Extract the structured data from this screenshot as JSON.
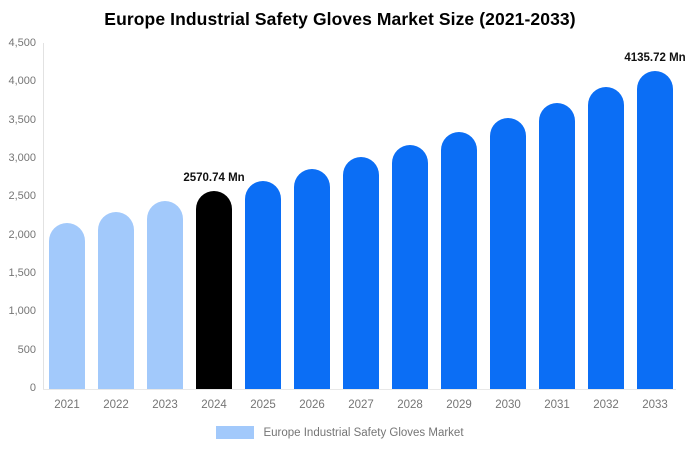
{
  "title": "Europe Industrial Safety Gloves Market Size (2021-2033)",
  "legend": {
    "label": "Europe Industrial Safety Gloves Market",
    "swatch_color": "#a2c9fb"
  },
  "colors": {
    "historical": "#a2c9fb",
    "base_year": "#000000",
    "forecast": "#0b6ef5",
    "axis_text": "#757575",
    "value_label_text": "#111111"
  },
  "chart_data": {
    "type": "bar",
    "title": "Europe Industrial Safety Gloves Market Size (2021-2033)",
    "unit": "Mn",
    "ylim": [
      0,
      4500
    ],
    "grid": "off",
    "legend_position": "bottom",
    "y_ticks": [
      {
        "value": 4500,
        "label": "4,500"
      },
      {
        "value": 4000,
        "label": "4,000"
      },
      {
        "value": 3500,
        "label": "3,500"
      },
      {
        "value": 3000,
        "label": "3,000"
      },
      {
        "value": 2500,
        "label": "2,500"
      },
      {
        "value": 2000,
        "label": "2,000"
      },
      {
        "value": 1500,
        "label": "1,500"
      },
      {
        "value": 1000,
        "label": "1,000"
      },
      {
        "value": 500,
        "label": "500"
      },
      {
        "value": 0,
        "label": "0"
      }
    ],
    "categories": [
      "2021",
      "2022",
      "2023",
      "2024",
      "2025",
      "2026",
      "2027",
      "2028",
      "2029",
      "2030",
      "2031",
      "2032",
      "2033"
    ],
    "series": [
      {
        "name": "Europe Industrial Safety Gloves Market",
        "values": [
          2150,
          2295,
          2435,
          2570.74,
          2705,
          2855,
          3010,
          3175,
          3340,
          3520,
          3715,
          3920,
          4135.72
        ]
      }
    ],
    "bars": [
      {
        "year": "2021",
        "value": 2150,
        "role": "historical"
      },
      {
        "year": "2022",
        "value": 2295,
        "role": "historical"
      },
      {
        "year": "2023",
        "value": 2435,
        "role": "historical"
      },
      {
        "year": "2024",
        "value": 2570.74,
        "role": "base_year",
        "label": "2570.74 Mn"
      },
      {
        "year": "2025",
        "value": 2705,
        "role": "forecast"
      },
      {
        "year": "2026",
        "value": 2855,
        "role": "forecast"
      },
      {
        "year": "2027",
        "value": 3010,
        "role": "forecast"
      },
      {
        "year": "2028",
        "value": 3175,
        "role": "forecast"
      },
      {
        "year": "2029",
        "value": 3340,
        "role": "forecast"
      },
      {
        "year": "2030",
        "value": 3520,
        "role": "forecast"
      },
      {
        "year": "2031",
        "value": 3715,
        "role": "forecast"
      },
      {
        "year": "2032",
        "value": 3920,
        "role": "forecast"
      },
      {
        "year": "2033",
        "value": 4135.72,
        "role": "forecast",
        "label": "4135.72 Mn"
      }
    ]
  }
}
